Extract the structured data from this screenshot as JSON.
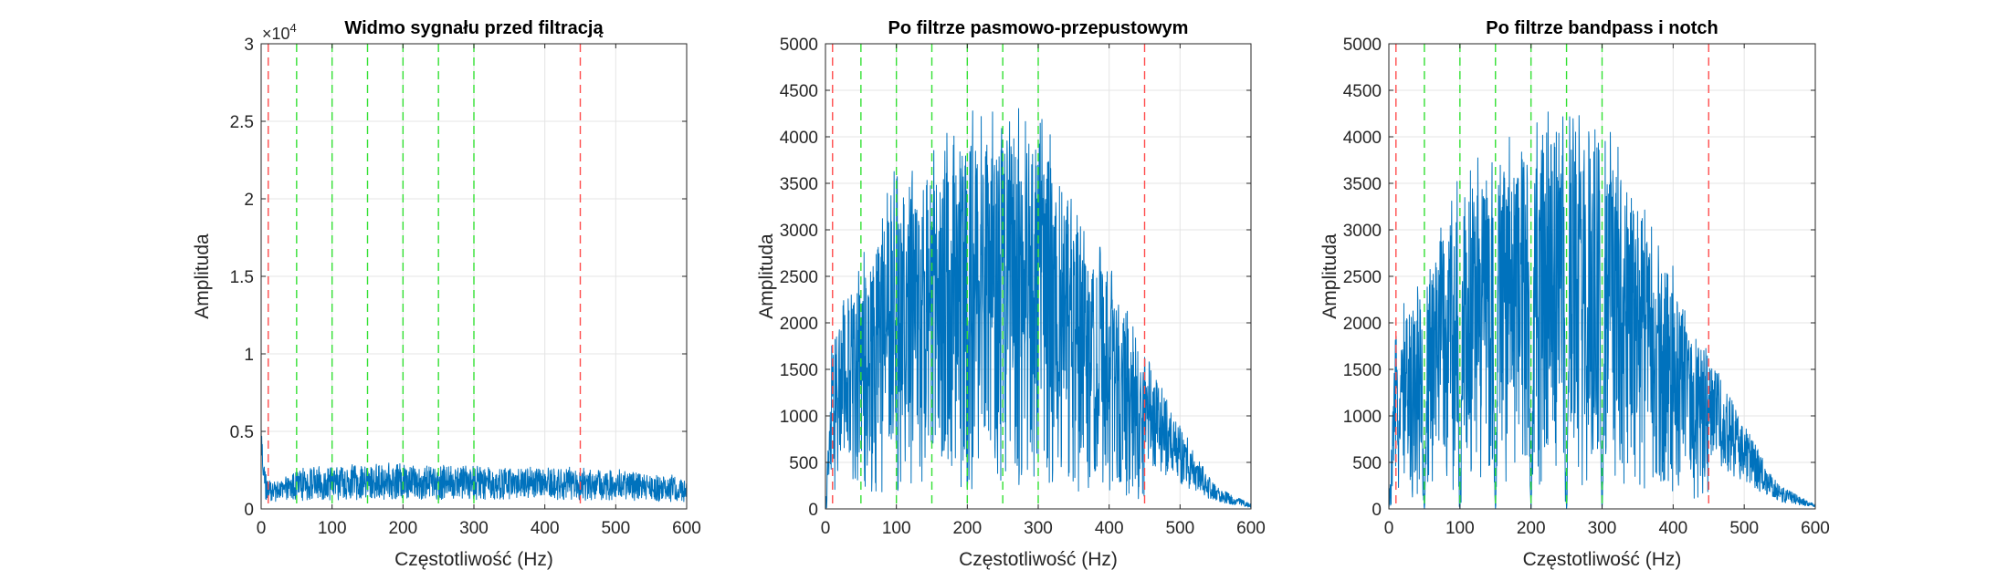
{
  "colors": {
    "signal": "#0072BD",
    "red_marker": "#FF4D4D",
    "green_marker": "#33E033",
    "grid": "#E5E5E5",
    "axis": "#262626"
  },
  "chart_data": [
    {
      "type": "line",
      "title": "Widmo sygnału przed filtracją",
      "xlabel": "Częstotliwość (Hz)",
      "ylabel": "Amplituda",
      "xlim": [
        0,
        600
      ],
      "ylim": [
        0,
        30000
      ],
      "y_exponent_label": "×10",
      "y_exponent_power": "4",
      "xticks": [
        0,
        100,
        200,
        300,
        400,
        500,
        600
      ],
      "xticklabels": [
        "0",
        "100",
        "200",
        "300",
        "400",
        "500",
        "600"
      ],
      "yticks": [
        0,
        5000,
        10000,
        15000,
        20000,
        25000,
        30000
      ],
      "yticklabels": [
        "0",
        "0.5",
        "1",
        "1.5",
        "2",
        "2.5",
        "3"
      ],
      "grid": true,
      "red_lines_x": [
        10,
        450
      ],
      "green_lines_x": [
        50,
        100,
        150,
        200,
        250,
        300
      ],
      "series": [
        {
          "x": [
            0,
            3,
            6,
            10,
            30,
            50,
            100,
            150,
            200,
            250,
            300,
            350,
            400,
            450,
            500,
            550,
            600
          ],
          "y": [
            6000,
            3300,
            2600,
            1800,
            1900,
            2600,
            2800,
            2900,
            3000,
            2900,
            2900,
            2700,
            2800,
            2700,
            2600,
            2300,
            2100
          ]
        }
      ]
    },
    {
      "type": "line",
      "title": "Po filtrze pasmowo-przepustowym",
      "xlabel": "Częstotliwość (Hz)",
      "ylabel": "Amplituda",
      "xlim": [
        0,
        600
      ],
      "ylim": [
        0,
        5000
      ],
      "xticks": [
        0,
        100,
        200,
        300,
        400,
        500,
        600
      ],
      "xticklabels": [
        "0",
        "100",
        "200",
        "300",
        "400",
        "500",
        "600"
      ],
      "yticks": [
        0,
        500,
        1000,
        1500,
        2000,
        2500,
        3000,
        3500,
        4000,
        4500,
        5000
      ],
      "yticklabels": [
        "0",
        "500",
        "1000",
        "1500",
        "2000",
        "2500",
        "3000",
        "3500",
        "4000",
        "4500",
        "5000"
      ],
      "grid": true,
      "red_lines_x": [
        10,
        450
      ],
      "green_lines_x": [
        50,
        100,
        150,
        200,
        250,
        300
      ],
      "series": [
        {
          "x": [
            0,
            5,
            10,
            20,
            50,
            100,
            150,
            200,
            250,
            300,
            350,
            400,
            450,
            500,
            550,
            600
          ],
          "y": [
            0,
            1000,
            2000,
            2200,
            2700,
            3700,
            3900,
            4300,
            4300,
            4500,
            3400,
            2700,
            1700,
            900,
            250,
            50
          ]
        }
      ]
    },
    {
      "type": "line",
      "title": "Po filtrze bandpass i notch",
      "xlabel": "Częstotliwość (Hz)",
      "ylabel": "Amplituda",
      "xlim": [
        0,
        600
      ],
      "ylim": [
        0,
        5000
      ],
      "xticks": [
        0,
        100,
        200,
        300,
        400,
        500,
        600
      ],
      "xticklabels": [
        "0",
        "100",
        "200",
        "300",
        "400",
        "500",
        "600"
      ],
      "yticks": [
        0,
        500,
        1000,
        1500,
        2000,
        2500,
        3000,
        3500,
        4000,
        4500,
        5000
      ],
      "yticklabels": [
        "0",
        "500",
        "1000",
        "1500",
        "2000",
        "2500",
        "3000",
        "3500",
        "4000",
        "4500",
        "5000"
      ],
      "grid": true,
      "red_lines_x": [
        10,
        450
      ],
      "green_lines_x": [
        50,
        100,
        150,
        200,
        250,
        300
      ],
      "notches_x": [
        50,
        100,
        150,
        200,
        250,
        300
      ],
      "series": [
        {
          "x": [
            0,
            5,
            10,
            20,
            50,
            100,
            150,
            200,
            250,
            300,
            350,
            400,
            450,
            500,
            550,
            600
          ],
          "y": [
            0,
            1000,
            2000,
            2200,
            2700,
            3700,
            3900,
            4300,
            4300,
            4500,
            3400,
            2700,
            1700,
            900,
            250,
            50
          ]
        }
      ]
    }
  ]
}
